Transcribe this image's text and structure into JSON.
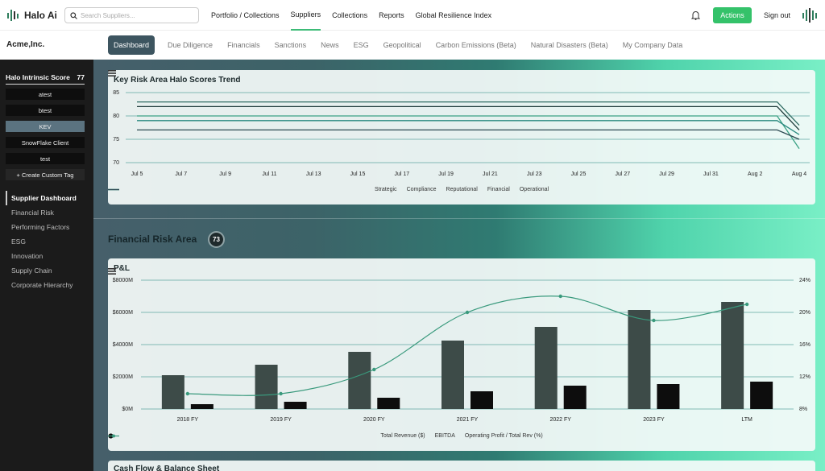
{
  "header": {
    "logo": "Halo Ai",
    "search_placeholder": "Search Suppliers...",
    "nav": [
      "Portfolio / Collections",
      "Suppliers",
      "Collections",
      "Reports",
      "Global Resilience Index"
    ],
    "actions": "Actions",
    "sign_out": "Sign out"
  },
  "company": "Acme,Inc.",
  "tabs": [
    "Dashboard",
    "Due Diligence",
    "Financials",
    "Sanctions",
    "News",
    "ESG",
    "Geopolitical",
    "Carbon Emissions (Beta)",
    "Natural Disasters (Beta)",
    "My Company Data"
  ],
  "sidebar": {
    "score_label": "Halo Intrinsic Score",
    "score": 77,
    "tags": [
      "atest",
      "btest",
      "KEV",
      "SnowFlake Client",
      "test"
    ],
    "create_tag": "+ Create Custom Tag",
    "nav": [
      "Supplier Dashboard",
      "Financial Risk",
      "Performing Factors",
      "ESG",
      "Innovation",
      "Supply Chain",
      "Corporate Hierarchy"
    ]
  },
  "trend_chart": {
    "type": "line",
    "title": "Key Risk Area Halo Scores Trend",
    "categories": [
      "Jul 5",
      null,
      "Jul 7",
      null,
      "Jul 9",
      null,
      "Jul 11",
      null,
      "Jul 13",
      null,
      "Jul 15",
      null,
      "Jul 17",
      null,
      "Jul 19",
      null,
      "Jul 21",
      null,
      "Jul 23",
      null,
      "Jul 25",
      null,
      "Jul 27",
      null,
      "Jul 29",
      null,
      "Jul 31",
      null,
      "Aug 2",
      null,
      "Aug 4"
    ],
    "ylim": [
      70,
      85
    ],
    "yticks": [
      70,
      75,
      80,
      85
    ],
    "grid": true,
    "series": [
      {
        "name": "Strategic",
        "color": "#2f6b62",
        "values": [
          83,
          83,
          83,
          83,
          83,
          83,
          83,
          83,
          83,
          83,
          83,
          83,
          83,
          83,
          83,
          83,
          83,
          83,
          83,
          83,
          83,
          83,
          83,
          83,
          83,
          83,
          83,
          83,
          83,
          83,
          78
        ]
      },
      {
        "name": "Compliance",
        "color": "#1e3a3a",
        "values": [
          82,
          82,
          82,
          82,
          82,
          82,
          82,
          82,
          82,
          82,
          82,
          82,
          82,
          82,
          82,
          82,
          82,
          82,
          82,
          82,
          82,
          82,
          82,
          82,
          82,
          82,
          82,
          82,
          82,
          82,
          77
        ]
      },
      {
        "name": "Reputational",
        "color": "#3aa184",
        "values": [
          80,
          80,
          80,
          80,
          80,
          80,
          80,
          80,
          80,
          80,
          80,
          80,
          80,
          80,
          80,
          80,
          80,
          80,
          80,
          80,
          80,
          80,
          80,
          80,
          80,
          80,
          80,
          80,
          80,
          80,
          73
        ]
      },
      {
        "name": "Financial",
        "color": "#2a8a80",
        "values": [
          79,
          79,
          79,
          79,
          79,
          79,
          79,
          79,
          79,
          79,
          79,
          79,
          79,
          79,
          79,
          79,
          79,
          79,
          79,
          79,
          79,
          79,
          79,
          79,
          79,
          79,
          79,
          79,
          79,
          79,
          76
        ]
      },
      {
        "name": "Operational",
        "color": "#2c4a52",
        "values": [
          77,
          77,
          77,
          77,
          77,
          77,
          77,
          77,
          77,
          77,
          77,
          77,
          77,
          77,
          77,
          77,
          77,
          77,
          77,
          77,
          77,
          77,
          77,
          77,
          77,
          77,
          77,
          77,
          77,
          77,
          75
        ]
      }
    ]
  },
  "section": {
    "title": "Financial Risk Area",
    "score": 73
  },
  "pl_chart": {
    "type": "bar",
    "title": "P&L",
    "categories": [
      "2018 FY",
      "2019 FY",
      "2020 FY",
      "2021 FY",
      "2022 FY",
      "2023 FY",
      "LTM"
    ],
    "ylim": [
      0,
      8000
    ],
    "yticks": [
      {
        "value": 0,
        "label": "$0M"
      },
      {
        "value": 2000,
        "label": "$2000M"
      },
      {
        "value": 4000,
        "label": "$4000M"
      },
      {
        "value": 6000,
        "label": "$6000M"
      },
      {
        "value": 8000,
        "label": "$8000M"
      }
    ],
    "y2lim": [
      8,
      24
    ],
    "y2ticks": [
      {
        "value": 8,
        "label": "8%"
      },
      {
        "value": 12,
        "label": "12%"
      },
      {
        "value": 16,
        "label": "16%"
      },
      {
        "value": 20,
        "label": "20%"
      },
      {
        "value": 24,
        "label": "24%"
      }
    ],
    "grid": true,
    "series": [
      {
        "name": "Total Revenue ($)",
        "color": "#3d4b48",
        "values": [
          2100,
          2750,
          3550,
          4250,
          5100,
          6150,
          6650
        ]
      },
      {
        "name": "EBITDA",
        "color": "#0d0d0d",
        "values": [
          300,
          450,
          700,
          1100,
          1450,
          1550,
          1700
        ]
      },
      {
        "name": "Operating Profit / Total Rev (%)",
        "color": "#3a9a7d",
        "axis": "y2",
        "values": [
          9.9,
          9.9,
          12.9,
          20,
          22,
          19,
          21
        ]
      }
    ]
  },
  "next_card_title": "Cash Flow & Balance Sheet"
}
